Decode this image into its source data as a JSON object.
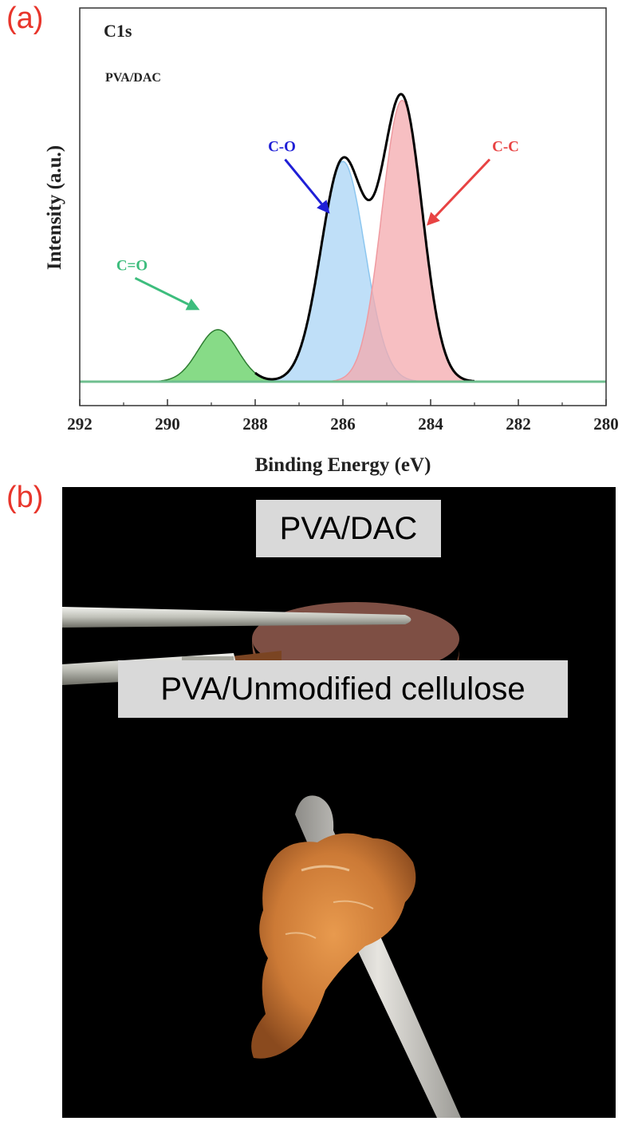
{
  "panels": {
    "a_label": "(a)",
    "b_label": "(b)"
  },
  "chart_data": {
    "type": "line",
    "title": "C1s",
    "subtitle": "PVA/DAC",
    "xlabel": "Binding Energy (eV)",
    "ylabel": "Intensity (a.u.)",
    "xlim": [
      292,
      280
    ],
    "x_reversed": true,
    "xticks": [
      292,
      290,
      288,
      286,
      284,
      282,
      280
    ],
    "y_ticks_shown": false,
    "grid": false,
    "legend": "none",
    "peaks": [
      {
        "label": "C=O",
        "center": 288.85,
        "height": 0.17,
        "width": 0.45,
        "color": "#5fcf5f",
        "edge": "#2e7d32",
        "text_color": "#3dbd7d"
      },
      {
        "label": "C-O",
        "center": 286.0,
        "height": 0.72,
        "width": 0.5,
        "color": "#a9d4f5",
        "edge": "#8cc6ef",
        "text_color": "#1f1fd6"
      },
      {
        "label": "C-C",
        "center": 284.65,
        "height": 0.92,
        "width": 0.46,
        "color": "#f4a9ad",
        "edge": "#ef9aa0",
        "text_color": "#e84343"
      }
    ],
    "envelope_color": "#000000",
    "baseline_color": "#6fbf8f"
  },
  "photo": {
    "caption_top": "PVA/DAC",
    "caption_bottom": "PVA/Unmodified cellulose"
  }
}
